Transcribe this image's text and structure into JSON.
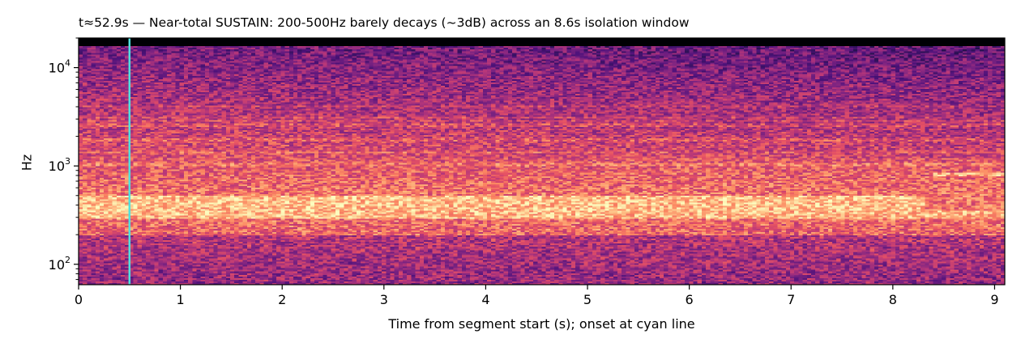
{
  "chart_data": {
    "type": "heatmap",
    "title": "t≈52.9s — Near-total SUSTAIN: 200-500Hz barely decays (~3dB) across an 8.6s isolation window",
    "xlabel": "Time from segment start (s); onset at cyan line",
    "ylabel": "Hz",
    "x_scale": "linear",
    "y_scale": "log",
    "xlim": [
      0,
      9.1
    ],
    "ylim": [
      62,
      20000
    ],
    "x_ticks": [
      0,
      1,
      2,
      3,
      4,
      5,
      6,
      7,
      8,
      9
    ],
    "x_tick_labels": [
      "0",
      "1",
      "2",
      "3",
      "4",
      "5",
      "6",
      "7",
      "8",
      "9"
    ],
    "y_ticks": [
      100,
      1000,
      10000
    ],
    "y_tick_labels": [
      {
        "base": "10",
        "exp": "2"
      },
      {
        "base": "10",
        "exp": "3"
      },
      {
        "base": "10",
        "exp": "4"
      }
    ],
    "colormap": "magma",
    "nyquist_hz": 16500,
    "onset_line": {
      "x": 0.5,
      "color": "#4fe0e0"
    },
    "bands": [
      {
        "f_low": 350,
        "f_high": 500,
        "t_start": 0,
        "t_end": 8.3,
        "note": "sustained bright band"
      },
      {
        "f_low": 200,
        "f_high": 350,
        "t_start": 0,
        "t_end": 9.1,
        "note": "dominant sustained energy"
      },
      {
        "f_low": 780,
        "f_high": 850,
        "t_start": 8.4,
        "t_end": 9.1,
        "note": "late tonal line"
      }
    ],
    "colors": {
      "onset": "#4fe0e0",
      "axes": "#000000",
      "background": "#ffffff"
    }
  }
}
